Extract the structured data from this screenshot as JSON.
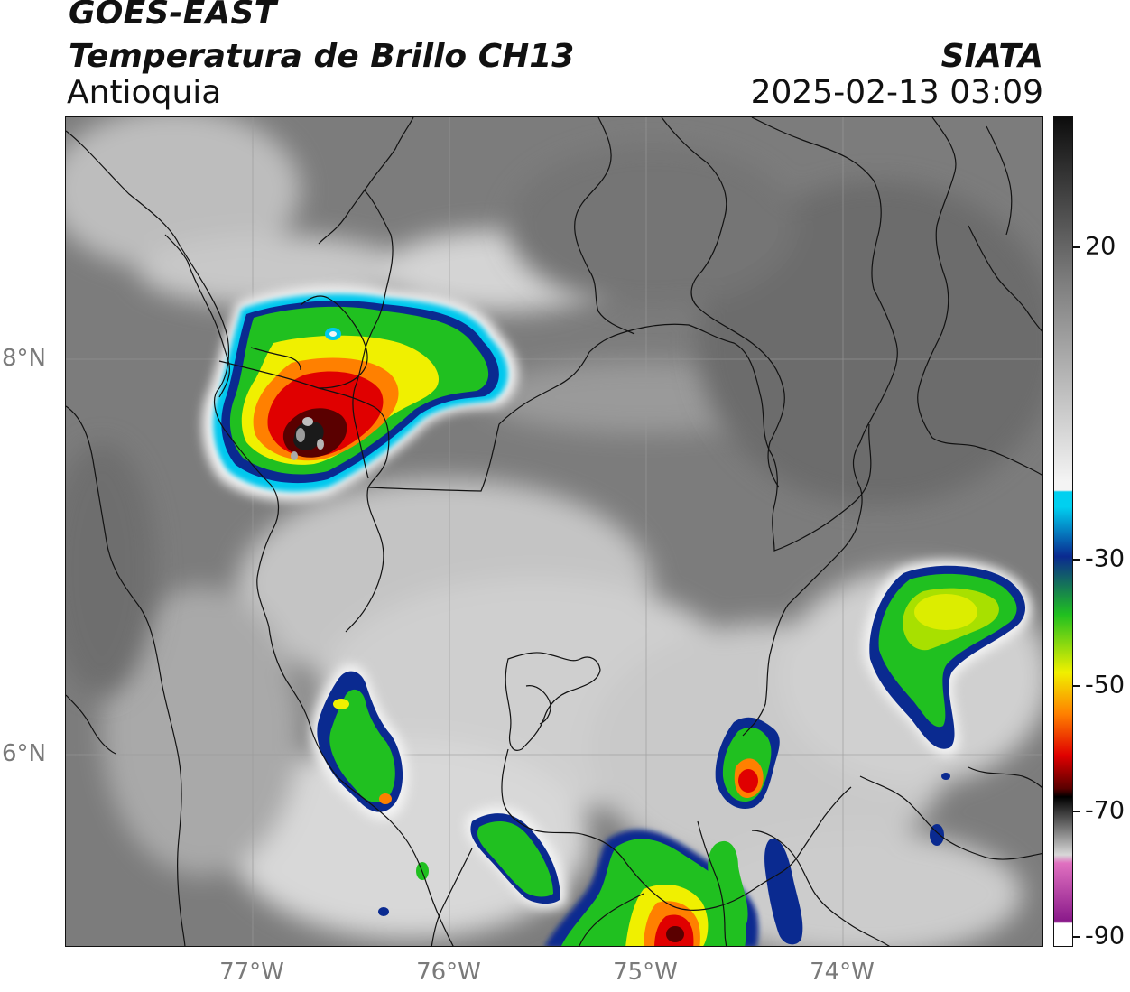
{
  "header": {
    "satellite": "GOES-EAST",
    "product": "Temperatura de Brillo CH13",
    "region": "Antioquia",
    "organization": "SIATA",
    "datetime": "2025-02-13 03:09"
  },
  "map": {
    "lat_labels": [
      "8°N",
      "6°N"
    ],
    "lon_labels": [
      "77°W",
      "76°W",
      "75°W",
      "74°W"
    ],
    "gridlines": true
  },
  "colorbar": {
    "tick_labels": [
      "20",
      "-30",
      "-50",
      "-70",
      "-90"
    ],
    "colors": {
      "warm_top": "#0d0d0d",
      "gray_mid": "#7e7e7e",
      "white": "#f4f4f4",
      "cyan": "#00d0f0",
      "dark_blue": "#0a2a90",
      "green": "#20c020",
      "yellow": "#f0f000",
      "orange": "#ff8000",
      "red": "#e00000",
      "dark_red": "#5a0000",
      "pink": "#e070c0",
      "purple": "#8a1a8a"
    }
  }
}
